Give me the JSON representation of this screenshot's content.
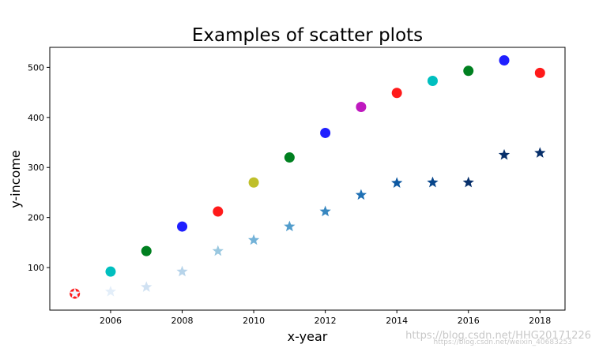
{
  "chart_data": {
    "type": "scatter",
    "title": "Examples of scatter plots",
    "xlabel": "x-year",
    "ylabel": "y-income",
    "xlim": [
      2004.3,
      2018.7
    ],
    "ylim": [
      15,
      540
    ],
    "x_ticks": [
      2006,
      2008,
      2010,
      2012,
      2014,
      2016,
      2018
    ],
    "y_ticks": [
      100,
      200,
      300,
      400,
      500
    ],
    "grid": false,
    "series": [
      {
        "marker": "circle",
        "points": [
          {
            "x": 2005,
            "y": 48,
            "color": "#ff1a1a"
          },
          {
            "x": 2006,
            "y": 92,
            "color": "#00bfbf"
          },
          {
            "x": 2007,
            "y": 133,
            "color": "#008020"
          },
          {
            "x": 2008,
            "y": 182,
            "color": "#1f1fff"
          },
          {
            "x": 2009,
            "y": 212,
            "color": "#ff1a1a"
          },
          {
            "x": 2010,
            "y": 270,
            "color": "#bfbf2a"
          },
          {
            "x": 2011,
            "y": 320,
            "color": "#008020"
          },
          {
            "x": 2012,
            "y": 369,
            "color": "#1f1fff"
          },
          {
            "x": 2013,
            "y": 421,
            "color": "#bf19bf"
          },
          {
            "x": 2014,
            "y": 449,
            "color": "#ff1a1a"
          },
          {
            "x": 2015,
            "y": 473,
            "color": "#00bfbf"
          },
          {
            "x": 2016,
            "y": 493,
            "color": "#008020"
          },
          {
            "x": 2017,
            "y": 514,
            "color": "#1f1fff"
          },
          {
            "x": 2018,
            "y": 489,
            "color": "#ff1a1a"
          }
        ]
      },
      {
        "marker": "star",
        "points": [
          {
            "x": 2005,
            "y": 48,
            "color": "#f0f7ff"
          },
          {
            "x": 2006,
            "y": 52,
            "color": "#e3eef9"
          },
          {
            "x": 2007,
            "y": 61,
            "color": "#d0e1f2"
          },
          {
            "x": 2008,
            "y": 92,
            "color": "#b7d4ea"
          },
          {
            "x": 2009,
            "y": 133,
            "color": "#9ac8e0"
          },
          {
            "x": 2010,
            "y": 155,
            "color": "#73b2d8"
          },
          {
            "x": 2011,
            "y": 182,
            "color": "#529dcc"
          },
          {
            "x": 2012,
            "y": 212,
            "color": "#3787c0"
          },
          {
            "x": 2013,
            "y": 245,
            "color": "#2070b4"
          },
          {
            "x": 2014,
            "y": 269,
            "color": "#0e59a2"
          },
          {
            "x": 2015,
            "y": 270,
            "color": "#08468b"
          },
          {
            "x": 2016,
            "y": 270,
            "color": "#08306b"
          },
          {
            "x": 2017,
            "y": 325,
            "color": "#08306b"
          },
          {
            "x": 2018,
            "y": 329,
            "color": "#08306b"
          }
        ]
      }
    ]
  },
  "watermark": "https://blog.csdn.net/HHG20171226",
  "watermark2": "https://blog.csdn.net/weixin_40683253"
}
